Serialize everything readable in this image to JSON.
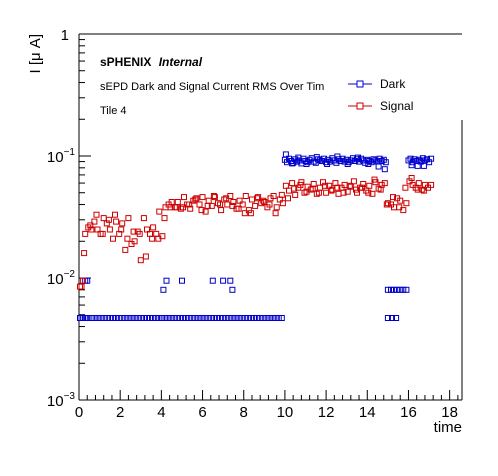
{
  "chart_data": {
    "type": "scatter",
    "xlabel": "time",
    "ylabel": "I [μ A]",
    "xlim": [
      0,
      18.6
    ],
    "ylim": [
      0.001,
      1
    ],
    "y_scale": "log",
    "x_ticks": [
      0,
      2,
      4,
      6,
      8,
      10,
      12,
      14,
      16,
      18
    ],
    "y_ticks": [
      {
        "value": 0.001,
        "base": "10",
        "exp": "−3"
      },
      {
        "value": 0.01,
        "base": "10",
        "exp": "−2"
      },
      {
        "value": 0.1,
        "base": "10",
        "exp": "−1"
      },
      {
        "value": 1,
        "base": "1",
        "exp": ""
      }
    ],
    "grid": false,
    "legend_position": "top-right",
    "annotations": {
      "experiment": "sPHENIX",
      "status": "Internal",
      "title": "sEPD Dark and Signal Current RMS Over Tim",
      "tile": "Tile 4"
    },
    "series": [
      {
        "name": "Dark",
        "color": "#0000cc",
        "marker": "open-square",
        "x": [
          0.05,
          0.12,
          0.2,
          0.28,
          0.35,
          0.42,
          0.6,
          0.75,
          0.9,
          1.05,
          1.2,
          1.35,
          1.5,
          1.65,
          1.8,
          1.95,
          2.1,
          2.25,
          2.4,
          2.55,
          2.7,
          2.85,
          3.0,
          3.15,
          3.3,
          3.45,
          3.6,
          3.75,
          3.9,
          4.0,
          4.05,
          4.15,
          4.3,
          4.45,
          4.6,
          4.75,
          4.9,
          5.05,
          5.2,
          5.35,
          5.5,
          5.65,
          5.8,
          5.95,
          6.1,
          6.25,
          6.4,
          6.55,
          6.7,
          6.85,
          7.0,
          7.15,
          7.3,
          7.45,
          7.6,
          7.75,
          7.9,
          8.05,
          8.2,
          8.35,
          8.5,
          8.65,
          8.8,
          8.95,
          9.1,
          9.25,
          9.4,
          9.55,
          9.7,
          9.85,
          4.1,
          4.25,
          5.0,
          6.5,
          7.0,
          7.35,
          0.3,
          0.4,
          7.45,
          10.0,
          10.1,
          10.2,
          10.3,
          10.4,
          10.5,
          10.6,
          10.7,
          10.8,
          10.9,
          11.0,
          11.1,
          11.2,
          11.3,
          11.4,
          11.5,
          11.6,
          11.7,
          11.8,
          11.9,
          12.0,
          12.1,
          12.2,
          12.3,
          12.4,
          12.5,
          12.6,
          12.7,
          12.8,
          12.9,
          13.0,
          13.1,
          13.2,
          13.3,
          13.4,
          13.5,
          13.6,
          13.7,
          13.8,
          13.9,
          14.0,
          14.1,
          14.2,
          14.3,
          14.4,
          14.5,
          14.6,
          14.7,
          14.8,
          14.9,
          10.05,
          10.35,
          10.65,
          11.05,
          11.55,
          12.05,
          12.55,
          13.05,
          13.55,
          14.05,
          14.55,
          14.85,
          15.0,
          15.15,
          15.3,
          15.45,
          15.6,
          15.75,
          15.9,
          15.0,
          15.2,
          15.4,
          16.0,
          16.1,
          16.2,
          16.3,
          16.4,
          16.5,
          16.6,
          16.7,
          16.8,
          16.9,
          17.0,
          17.1,
          16.15,
          16.45,
          16.75
        ],
        "y": [
          0.0047,
          0.0047,
          0.0047,
          0.0047,
          0.0047,
          0.0047,
          0.0047,
          0.0047,
          0.0047,
          0.0047,
          0.0047,
          0.0047,
          0.0047,
          0.0047,
          0.0047,
          0.0047,
          0.0047,
          0.0047,
          0.0047,
          0.0047,
          0.0047,
          0.0047,
          0.0047,
          0.0047,
          0.0047,
          0.0047,
          0.0047,
          0.0047,
          0.0047,
          0.0047,
          0.0047,
          0.0047,
          0.0047,
          0.0047,
          0.0047,
          0.0047,
          0.0047,
          0.0047,
          0.0047,
          0.0047,
          0.0047,
          0.0047,
          0.0047,
          0.0047,
          0.0047,
          0.0047,
          0.0047,
          0.0047,
          0.0047,
          0.0047,
          0.0047,
          0.0047,
          0.0047,
          0.0047,
          0.0047,
          0.0047,
          0.0047,
          0.0047,
          0.0047,
          0.0047,
          0.0047,
          0.0047,
          0.0047,
          0.0047,
          0.0047,
          0.0047,
          0.0047,
          0.0047,
          0.0047,
          0.0047,
          0.008,
          0.0095,
          0.0095,
          0.0095,
          0.0095,
          0.0095,
          0.0095,
          0.0095,
          0.008,
          0.093,
          0.089,
          0.095,
          0.091,
          0.088,
          0.094,
          0.09,
          0.092,
          0.087,
          0.095,
          0.091,
          0.089,
          0.093,
          0.096,
          0.09,
          0.088,
          0.094,
          0.092,
          0.091,
          0.095,
          0.089,
          0.093,
          0.09,
          0.096,
          0.092,
          0.088,
          0.094,
          0.091,
          0.095,
          0.09,
          0.093,
          0.089,
          0.092,
          0.096,
          0.091,
          0.094,
          0.09,
          0.095,
          0.092,
          0.088,
          0.093,
          0.091,
          0.089,
          0.094,
          0.092,
          0.09,
          0.095,
          0.091,
          0.093,
          0.089,
          0.103,
          0.087,
          0.097,
          0.086,
          0.098,
          0.086,
          0.099,
          0.086,
          0.097,
          0.086,
          0.082,
          0.078,
          0.008,
          0.008,
          0.008,
          0.008,
          0.008,
          0.008,
          0.008,
          0.0047,
          0.0047,
          0.0047,
          0.092,
          0.095,
          0.089,
          0.094,
          0.091,
          0.093,
          0.09,
          0.096,
          0.092,
          0.094,
          0.089,
          0.095,
          0.084,
          0.083,
          0.083
        ],
        "note_fill": "n/a"
      },
      {
        "name": "Signal",
        "color": "#cc0000",
        "marker": "open-square",
        "x": [
          0.05,
          0.12,
          0.2,
          0.3,
          0.45,
          0.6,
          0.75,
          0.9,
          1.05,
          1.2,
          1.35,
          1.5,
          1.65,
          1.8,
          1.95,
          2.1,
          2.25,
          2.4,
          2.55,
          2.7,
          2.85,
          3.0,
          3.15,
          3.3,
          3.45,
          3.6,
          3.75,
          3.9,
          4.05,
          4.2,
          4.35,
          4.5,
          4.65,
          4.8,
          4.95,
          5.1,
          5.25,
          5.4,
          5.55,
          5.7,
          5.85,
          6.0,
          6.15,
          6.3,
          6.45,
          6.6,
          6.75,
          6.9,
          7.05,
          7.2,
          7.35,
          7.5,
          7.65,
          7.8,
          7.95,
          8.1,
          8.25,
          8.4,
          8.55,
          8.7,
          8.85,
          9.0,
          9.15,
          9.3,
          9.45,
          9.6,
          9.75,
          9.9,
          10.05,
          10.2,
          10.35,
          10.5,
          10.65,
          10.8,
          10.95,
          11.1,
          11.25,
          11.4,
          11.55,
          11.7,
          11.85,
          12.0,
          12.15,
          12.3,
          12.45,
          12.6,
          12.75,
          12.9,
          13.05,
          13.2,
          13.35,
          13.5,
          13.65,
          13.8,
          13.95,
          14.1,
          14.25,
          14.4,
          14.55,
          14.7,
          14.85,
          15.0,
          15.15,
          15.3,
          15.45,
          15.6,
          15.75,
          15.9,
          16.05,
          16.2,
          16.35,
          16.5,
          16.65,
          16.8,
          16.95,
          17.1,
          0.25,
          0.55,
          0.85,
          1.15,
          1.45,
          1.75,
          2.05,
          2.35,
          2.65,
          2.95,
          3.25,
          3.55,
          3.85,
          4.15,
          4.45,
          4.75,
          5.05,
          5.35,
          5.65,
          5.95,
          6.25,
          6.55,
          6.85,
          7.15,
          7.45,
          7.75,
          8.05,
          8.35,
          8.65,
          8.95,
          9.25,
          9.55,
          9.85,
          10.15,
          10.45,
          10.75,
          11.05,
          11.35,
          11.65,
          11.95,
          12.25,
          12.55,
          12.85,
          13.15,
          13.45,
          13.75,
          14.05,
          14.35,
          14.65,
          14.95,
          15.25,
          15.55,
          15.85,
          16.15,
          16.45,
          16.75
        ],
        "y": [
          0.0085,
          0.0085,
          0.0095,
          0.023,
          0.026,
          0.025,
          0.029,
          0.025,
          0.023,
          0.031,
          0.028,
          0.025,
          0.021,
          0.029,
          0.023,
          0.028,
          0.017,
          0.031,
          0.019,
          0.02,
          0.024,
          0.014,
          0.031,
          0.025,
          0.023,
          0.026,
          0.023,
          0.035,
          0.022,
          0.038,
          0.04,
          0.042,
          0.038,
          0.042,
          0.037,
          0.046,
          0.04,
          0.037,
          0.043,
          0.045,
          0.04,
          0.046,
          0.035,
          0.043,
          0.039,
          0.046,
          0.041,
          0.036,
          0.044,
          0.04,
          0.047,
          0.042,
          0.037,
          0.043,
          0.04,
          0.047,
          0.036,
          0.044,
          0.039,
          0.046,
          0.041,
          0.042,
          0.038,
          0.045,
          0.047,
          0.038,
          0.044,
          0.041,
          0.057,
          0.052,
          0.06,
          0.048,
          0.055,
          0.061,
          0.05,
          0.056,
          0.053,
          0.059,
          0.049,
          0.055,
          0.061,
          0.05,
          0.057,
          0.053,
          0.06,
          0.049,
          0.055,
          0.058,
          0.051,
          0.056,
          0.062,
          0.05,
          0.055,
          0.059,
          0.052,
          0.057,
          0.049,
          0.061,
          0.054,
          0.058,
          0.06,
          0.041,
          0.04,
          0.038,
          0.045,
          0.043,
          0.036,
          0.041,
          0.062,
          0.058,
          0.055,
          0.06,
          0.053,
          0.058,
          0.055,
          0.058,
          0.016,
          0.027,
          0.033,
          0.023,
          0.03,
          0.033,
          0.025,
          0.021,
          0.024,
          0.023,
          0.015,
          0.021,
          0.021,
          0.031,
          0.038,
          0.038,
          0.038,
          0.04,
          0.044,
          0.036,
          0.039,
          0.047,
          0.04,
          0.045,
          0.039,
          0.037,
          0.034,
          0.034,
          0.045,
          0.043,
          0.04,
          0.034,
          0.048,
          0.045,
          0.054,
          0.058,
          0.051,
          0.054,
          0.05,
          0.057,
          0.052,
          0.055,
          0.05,
          0.057,
          0.053,
          0.055,
          0.05,
          0.064,
          0.053,
          0.04,
          0.046,
          0.038,
          0.055,
          0.066,
          0.053,
          0.052
        ]
      }
    ]
  }
}
